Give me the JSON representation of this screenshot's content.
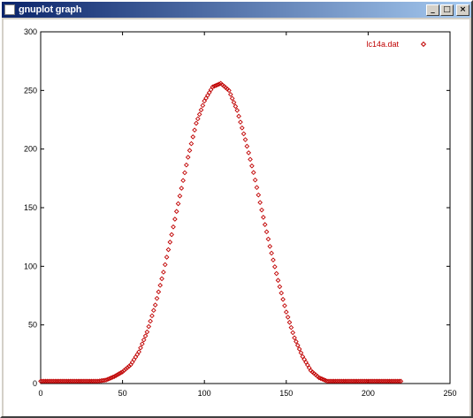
{
  "window": {
    "title": "gnuplot graph",
    "icon": "gnuplot-app-icon",
    "controls": {
      "minimize": "_",
      "maximize": "□",
      "close": "×"
    }
  },
  "colors": {
    "series": "#c00000",
    "axis": "#000000",
    "background": "#ffffff"
  },
  "chart_data": {
    "type": "scatter",
    "title": "",
    "xlabel": "",
    "ylabel": "",
    "xlim": [
      0,
      250
    ],
    "ylim": [
      0,
      300
    ],
    "xticks": [
      0,
      50,
      100,
      150,
      200,
      250
    ],
    "xtick_labels": [
      "0",
      "50",
      "100",
      "150",
      "200",
      "250"
    ],
    "yticks": [
      0,
      50,
      100,
      150,
      200,
      250,
      300
    ],
    "ytick_labels": [
      "0",
      "50",
      "100",
      "150",
      "200",
      "250",
      "300"
    ],
    "grid": false,
    "legend": "top-right",
    "marker": "diamond-outline",
    "series": [
      {
        "name": "lc14a.dat",
        "color": "#c00000",
        "x": [
          0,
          5,
          10,
          15,
          20,
          25,
          30,
          35,
          40,
          45,
          50,
          55,
          60,
          65,
          70,
          75,
          80,
          85,
          90,
          95,
          100,
          105,
          110,
          115,
          120,
          125,
          130,
          135,
          140,
          145,
          150,
          155,
          160,
          165,
          170,
          175,
          180,
          185,
          190,
          195,
          200,
          205,
          210,
          215,
          220
        ],
        "y": [
          2,
          2,
          2,
          2,
          2,
          2,
          2,
          2,
          3,
          6,
          10,
          16,
          27,
          44,
          67,
          95,
          127,
          160,
          193,
          222,
          241,
          253,
          256,
          250,
          233,
          208,
          180,
          148,
          117,
          88,
          61,
          39,
          23,
          11,
          5,
          2,
          2,
          2,
          2,
          2,
          2,
          2,
          2,
          2,
          2
        ]
      }
    ]
  }
}
